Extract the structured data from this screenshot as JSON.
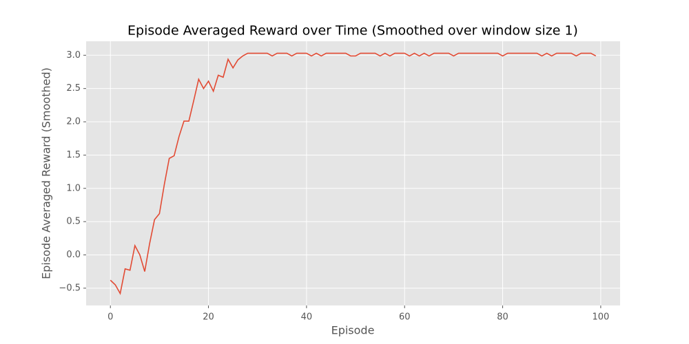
{
  "chart_data": {
    "type": "line",
    "title": "Episode Averaged Reward over Time (Smoothed over window size 1)",
    "x_label": "Episode",
    "y_label": "Episode Averaged Reward (Smoothed)",
    "x": [
      0,
      1,
      2,
      3,
      4,
      5,
      6,
      7,
      8,
      9,
      10,
      11,
      12,
      13,
      14,
      15,
      16,
      17,
      18,
      19,
      20,
      21,
      22,
      23,
      24,
      25,
      26,
      27,
      28,
      29,
      30,
      31,
      32,
      33,
      34,
      35,
      36,
      37,
      38,
      39,
      40,
      41,
      42,
      43,
      44,
      45,
      46,
      47,
      48,
      49,
      50,
      51,
      52,
      53,
      54,
      55,
      56,
      57,
      58,
      59,
      60,
      61,
      62,
      63,
      64,
      65,
      66,
      67,
      68,
      69,
      70,
      71,
      72,
      73,
      74,
      75,
      76,
      77,
      78,
      79,
      80,
      81,
      82,
      83,
      84,
      85,
      86,
      87,
      88,
      89,
      90,
      91,
      92,
      93,
      94,
      95,
      96,
      97,
      98,
      99
    ],
    "series": [
      {
        "name": "Episode Averaged Reward",
        "color": "#e24a33",
        "values": [
          -0.38,
          -0.45,
          -0.58,
          -0.21,
          -0.23,
          0.14,
          0.0,
          -0.25,
          0.17,
          0.53,
          0.62,
          1.06,
          1.45,
          1.49,
          1.78,
          2.01,
          2.01,
          2.32,
          2.64,
          2.5,
          2.61,
          2.46,
          2.7,
          2.67,
          2.94,
          2.81,
          2.93,
          2.99,
          3.03,
          3.03,
          3.03,
          3.03,
          3.03,
          2.99,
          3.03,
          3.03,
          3.03,
          2.99,
          3.03,
          3.03,
          3.03,
          2.99,
          3.03,
          2.99,
          3.03,
          3.03,
          3.03,
          3.03,
          3.03,
          2.99,
          2.99,
          3.03,
          3.03,
          3.03,
          3.03,
          2.99,
          3.03,
          2.99,
          3.03,
          3.03,
          3.03,
          2.99,
          3.03,
          2.99,
          3.03,
          2.99,
          3.03,
          3.03,
          3.03,
          3.03,
          2.99,
          3.03,
          3.03,
          3.03,
          3.03,
          3.03,
          3.03,
          3.03,
          3.03,
          3.03,
          2.99,
          3.03,
          3.03,
          3.03,
          3.03,
          3.03,
          3.03,
          3.03,
          2.99,
          3.03,
          2.99,
          3.03,
          3.03,
          3.03,
          3.03,
          2.99,
          3.03,
          3.03,
          3.03,
          2.99
        ]
      }
    ],
    "xlim": [
      -4.95,
      103.95
    ],
    "ylim": [
      -0.76,
      3.21
    ],
    "xticks": [
      0,
      20,
      40,
      60,
      80,
      100
    ],
    "yticks": [
      {
        "value": -0.5,
        "label": "−0.5"
      },
      {
        "value": 0.0,
        "label": "0.0"
      },
      0.5,
      {
        "value": 1.0,
        "label": "1.0"
      },
      1.5,
      {
        "value": 2.0,
        "label": "2.0"
      },
      2.5,
      {
        "value": 3.0,
        "label": "3.0"
      }
    ],
    "grid": true
  }
}
